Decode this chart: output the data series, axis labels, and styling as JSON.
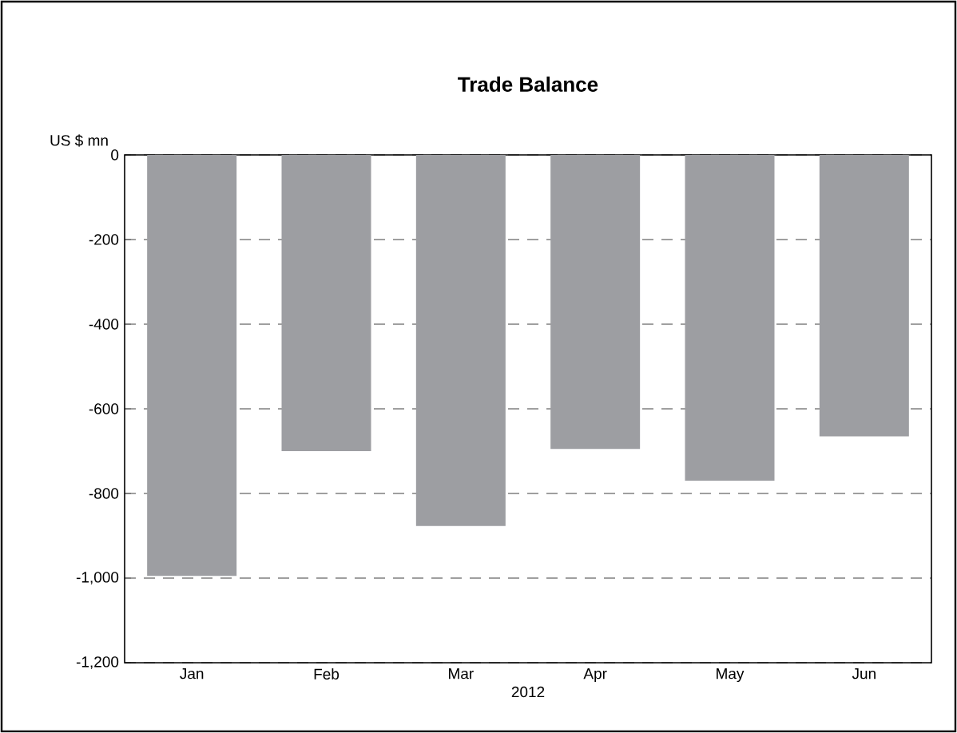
{
  "chart_data": {
    "type": "bar",
    "title": "Trade  Balance",
    "ylabel": "US $ mn",
    "xlabel": "2012",
    "categories": [
      "Jan",
      "Feb",
      "Mar",
      "Apr",
      "May",
      "Jun"
    ],
    "values": [
      -995,
      -700,
      -877,
      -695,
      -770,
      -665
    ],
    "color": "#9d9ea2",
    "ylim": [
      -1200,
      0
    ],
    "yticks": [
      {
        "value": -1200,
        "label": "-1,200"
      },
      {
        "value": -1000,
        "label": "-1,000"
      },
      -800,
      -600,
      -400,
      -200,
      0
    ],
    "grid": "y"
  }
}
